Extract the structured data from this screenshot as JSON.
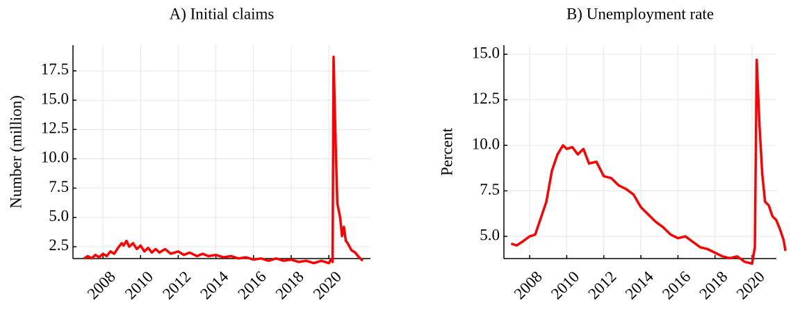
{
  "chart_data": [
    {
      "type": "line",
      "title": "A) Initial claims",
      "y_label": "Number (million)",
      "color": "#ff0000",
      "grid": true,
      "x": [
        2007.0,
        2007.2,
        2007.4,
        2007.6,
        2007.8,
        2008.0,
        2008.2,
        2008.4,
        2008.6,
        2008.8,
        2009.0,
        2009.1,
        2009.25,
        2009.4,
        2009.6,
        2009.8,
        2010.0,
        2010.2,
        2010.4,
        2010.6,
        2010.8,
        2011.0,
        2011.3,
        2011.6,
        2012.0,
        2012.3,
        2012.6,
        2013.0,
        2013.3,
        2013.6,
        2014.0,
        2014.4,
        2014.8,
        2015.2,
        2015.6,
        2016.0,
        2016.4,
        2016.8,
        2017.2,
        2017.6,
        2018.0,
        2018.4,
        2018.8,
        2019.2,
        2019.6,
        2020.0,
        2020.1,
        2020.2,
        2020.25,
        2020.35,
        2020.45,
        2020.6,
        2020.7,
        2020.8,
        2020.9,
        2021.0,
        2021.2,
        2021.4,
        2021.6,
        2021.8
      ],
      "values": [
        1.5,
        1.7,
        1.5,
        1.8,
        1.6,
        1.9,
        1.7,
        2.1,
        1.9,
        2.4,
        2.8,
        2.6,
        3.0,
        2.5,
        2.8,
        2.3,
        2.6,
        2.1,
        2.4,
        2.0,
        2.3,
        2.0,
        2.3,
        1.9,
        2.1,
        1.8,
        2.0,
        1.7,
        1.9,
        1.7,
        1.8,
        1.6,
        1.7,
        1.5,
        1.6,
        1.4,
        1.5,
        1.3,
        1.5,
        1.3,
        1.4,
        1.2,
        1.3,
        1.1,
        1.3,
        1.1,
        1.4,
        1.2,
        18.7,
        12.0,
        6.2,
        5.0,
        3.4,
        4.2,
        3.0,
        2.8,
        2.2,
        2.0,
        1.6,
        1.3
      ],
      "xlim": [
        2006.41,
        2022.21
      ],
      "xticks": [
        2008,
        2010,
        2012,
        2014,
        2016,
        2018,
        2020
      ],
      "ylim": [
        1.49,
        19.69
      ],
      "yticks": [
        2.5,
        {
          "value": 5,
          "label": "5.0"
        },
        7.5,
        {
          "value": 10,
          "label": "10.0"
        },
        12.5,
        {
          "value": 15,
          "label": "15.0"
        },
        17.5
      ]
    },
    {
      "type": "line",
      "title": "B) Unemployment rate",
      "y_label": "Percent",
      "color": "#ff0000",
      "grid": true,
      "x": [
        2007.0,
        2007.3,
        2007.6,
        2008.0,
        2008.3,
        2008.6,
        2008.9,
        2009.2,
        2009.5,
        2009.8,
        2010.0,
        2010.3,
        2010.6,
        2010.9,
        2011.2,
        2011.6,
        2012.0,
        2012.4,
        2012.8,
        2013.2,
        2013.6,
        2014.0,
        2014.4,
        2014.8,
        2015.2,
        2015.6,
        2016.0,
        2016.4,
        2016.8,
        2017.2,
        2017.6,
        2018.0,
        2018.4,
        2018.8,
        2019.2,
        2019.6,
        2020.0,
        2020.15,
        2020.25,
        2020.4,
        2020.55,
        2020.7,
        2020.9,
        2021.1,
        2021.3,
        2021.5,
        2021.7,
        2021.8
      ],
      "values": [
        4.6,
        4.5,
        4.7,
        5.0,
        5.1,
        6.0,
        6.9,
        8.6,
        9.5,
        10.0,
        9.8,
        9.9,
        9.5,
        9.8,
        9.0,
        9.1,
        8.3,
        8.2,
        7.8,
        7.6,
        7.3,
        6.6,
        6.2,
        5.8,
        5.5,
        5.1,
        4.9,
        5.0,
        4.7,
        4.4,
        4.3,
        4.1,
        3.9,
        3.8,
        3.9,
        3.6,
        3.5,
        4.4,
        14.7,
        11.1,
        8.4,
        6.9,
        6.7,
        6.1,
        5.9,
        5.4,
        4.8,
        4.2
      ],
      "xlim": [
        2006.61,
        2021.31
      ],
      "xticks": [
        2008,
        2010,
        2012,
        2014,
        2016,
        2018,
        2020
      ],
      "ylim": [
        3.78,
        15.5
      ],
      "yticks": [
        {
          "value": 5,
          "label": "5.0"
        },
        7.5,
        {
          "value": 10,
          "label": "10.0"
        },
        12.5,
        {
          "value": 15,
          "label": "15.0"
        }
      ]
    }
  ]
}
